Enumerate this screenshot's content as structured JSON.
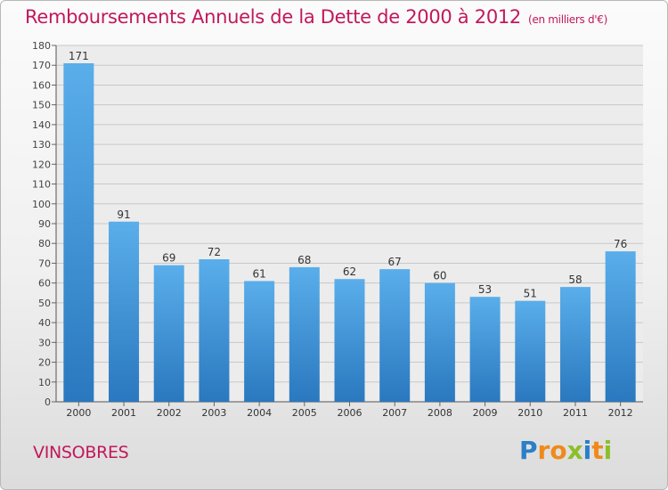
{
  "chart_data": {
    "type": "bar",
    "title": "Remboursements Annuels de la Dette de 2000 à 2012",
    "subtitle": "(en milliers d'€)",
    "categories": [
      "2000",
      "2001",
      "2002",
      "2003",
      "2004",
      "2005",
      "2006",
      "2007",
      "2008",
      "2009",
      "2010",
      "2011",
      "2012"
    ],
    "values": [
      171,
      91,
      69,
      72,
      61,
      68,
      62,
      67,
      60,
      53,
      51,
      58,
      76
    ],
    "ylim": [
      0,
      180
    ],
    "yticks": [
      0,
      10,
      20,
      30,
      40,
      50,
      60,
      70,
      80,
      90,
      100,
      110,
      120,
      130,
      140,
      150,
      160,
      170,
      180
    ],
    "grid": true,
    "bar_color": "#3a8fd6"
  },
  "location": "VINSOBRES",
  "logo": {
    "letters": [
      {
        "ch": "P",
        "color": "#2a7fc8"
      },
      {
        "ch": "r",
        "color": "#ef8a1a"
      },
      {
        "ch": "o",
        "color": "#ef8a1a"
      },
      {
        "ch": "x",
        "color": "#8bbf2a"
      },
      {
        "ch": "i",
        "color": "#2a7fc8"
      },
      {
        "ch": "t",
        "color": "#ef8a1a"
      },
      {
        "ch": "i",
        "color": "#8bbf2a"
      }
    ]
  }
}
